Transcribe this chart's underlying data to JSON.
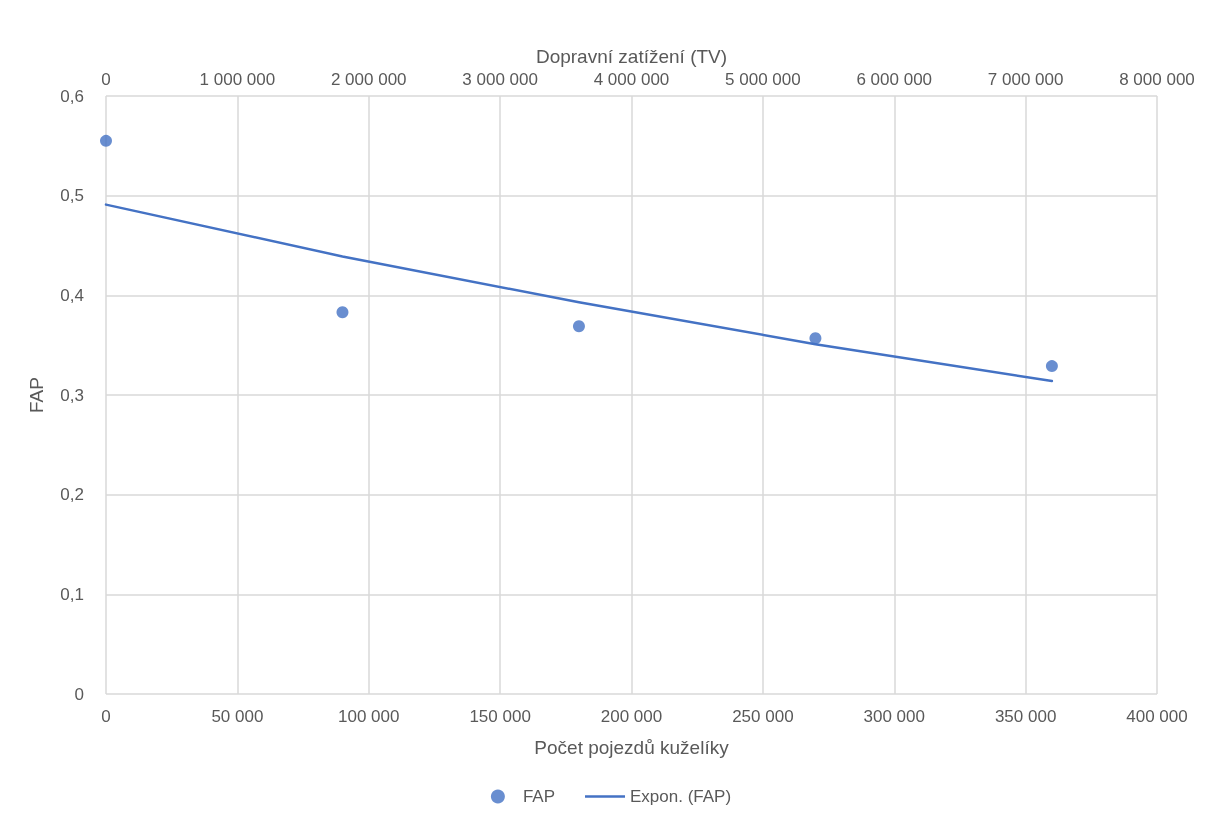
{
  "chart_data": {
    "type": "scatter",
    "xlabel": "Počet pojezdů kuželíky",
    "ylabel": "FAP",
    "x2label": "Dopravní zatížení (TV)",
    "x": [
      0,
      90000,
      180000,
      270000,
      360000
    ],
    "series": [
      {
        "name": "FAP",
        "color": "#4472c4",
        "marker": "circle",
        "values": [
          0.555,
          0.383,
          0.369,
          0.357,
          0.329
        ]
      },
      {
        "name": "Expon. (FAP)",
        "type": "line",
        "color": "#4472c4",
        "marker": "none",
        "line_style": "solid",
        "x": [
          0,
          90000,
          180000,
          270000,
          360000
        ],
        "values": [
          0.491,
          0.439,
          0.393,
          0.351,
          0.314
        ]
      }
    ],
    "xlim": [
      0,
      400000
    ],
    "xticks": [
      {
        "value": 0,
        "label": "0"
      },
      {
        "value": 50000,
        "label": "50 000"
      },
      {
        "value": 100000,
        "label": "100 000"
      },
      {
        "value": 150000,
        "label": "150 000"
      },
      {
        "value": 200000,
        "label": "200 000"
      },
      {
        "value": 250000,
        "label": "250 000"
      },
      {
        "value": 300000,
        "label": "300 000"
      },
      {
        "value": 350000,
        "label": "350 000"
      },
      {
        "value": 400000,
        "label": "400 000"
      }
    ],
    "x2lim": [
      0,
      8000000
    ],
    "x2ticks": [
      {
        "value": 0,
        "label": "0"
      },
      {
        "value": 1000000,
        "label": "1 000 000"
      },
      {
        "value": 2000000,
        "label": "2 000 000"
      },
      {
        "value": 3000000,
        "label": "3 000 000"
      },
      {
        "value": 4000000,
        "label": "4 000 000"
      },
      {
        "value": 5000000,
        "label": "5 000 000"
      },
      {
        "value": 6000000,
        "label": "6 000 000"
      },
      {
        "value": 7000000,
        "label": "7 000 000"
      },
      {
        "value": 8000000,
        "label": "8 000 000"
      }
    ],
    "ylim": [
      0,
      0.6
    ],
    "yticks": [
      {
        "value": 0,
        "label": "0"
      },
      {
        "value": 0.1,
        "label": "0,1"
      },
      {
        "value": 0.2,
        "label": "0,2"
      },
      {
        "value": 0.3,
        "label": "0,3"
      },
      {
        "value": 0.4,
        "label": "0,4"
      },
      {
        "value": 0.5,
        "label": "0,5"
      },
      {
        "value": 0.6,
        "label": "0,6"
      }
    ],
    "grid": true,
    "legend": "bottom"
  }
}
